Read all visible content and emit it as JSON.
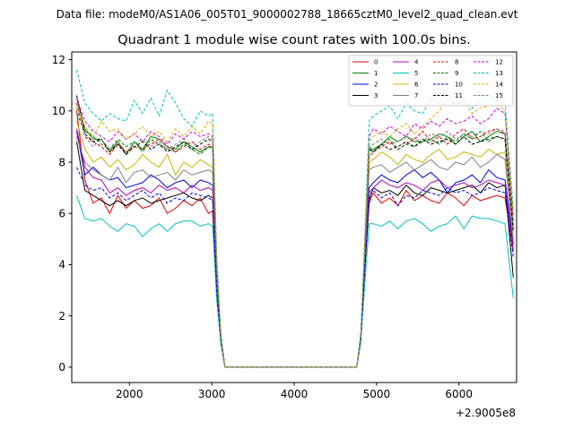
{
  "suptitle": "Data file: modeM0/AS1A06_005T01_9000002788_18665cztM0_level2_quad_clean.evt",
  "chart_data": {
    "type": "line",
    "title": "Quadrant 1 module wise count rates with 100.0s bins.",
    "xlabel": "",
    "ylabel": "",
    "x_offset_label": "+2.9005e8",
    "xlim": [
      1300,
      6700
    ],
    "ylim": [
      -0.6,
      12.3
    ],
    "x_ticks": [
      2000,
      3000,
      4000,
      5000,
      6000
    ],
    "y_ticks": [
      0,
      2,
      4,
      6,
      8,
      10,
      12
    ],
    "x_tick_labels": [
      "2000",
      "3000",
      "4000",
      "5000",
      "6000"
    ],
    "y_tick_labels": [
      "0",
      "2",
      "4",
      "6",
      "8",
      "10",
      "12"
    ],
    "grid": false,
    "legend_position": "top-right",
    "x": [
      1360,
      1460,
      1560,
      1660,
      1760,
      1860,
      1960,
      2060,
      2160,
      2260,
      2360,
      2460,
      2560,
      2660,
      2760,
      2860,
      2960,
      3010,
      3060,
      3110,
      3160,
      3260,
      3360,
      3460,
      3560,
      3660,
      3760,
      3860,
      3960,
      4060,
      4160,
      4260,
      4360,
      4460,
      4560,
      4660,
      4760,
      4810,
      4860,
      4910,
      4960,
      5060,
      5160,
      5260,
      5360,
      5460,
      5560,
      5660,
      5760,
      5860,
      5960,
      6060,
      6160,
      6260,
      6360,
      6460,
      6560,
      6660
    ],
    "series": [
      {
        "name": "0",
        "color": "#e00000",
        "dash": "solid",
        "values": [
          10.0,
          7.3,
          6.4,
          6.6,
          6.0,
          6.7,
          6.2,
          6.5,
          6.2,
          6.3,
          6.6,
          6.0,
          6.2,
          6.5,
          6.3,
          6.6,
          6.0,
          6.1,
          3.0,
          1.0,
          0,
          0,
          0,
          0,
          0,
          0,
          0,
          0,
          0,
          0,
          0,
          0,
          0,
          0,
          0,
          0,
          0,
          1.2,
          4.0,
          6.4,
          6.8,
          6.4,
          6.6,
          6.3,
          6.9,
          6.5,
          6.7,
          6.5,
          6.4,
          6.8,
          6.6,
          6.3,
          6.7,
          6.5,
          6.6,
          6.7,
          6.6,
          4.5
        ]
      },
      {
        "name": "1",
        "color": "#008000",
        "dash": "solid",
        "values": [
          10.5,
          9.3,
          8.9,
          8.9,
          8.4,
          8.8,
          8.3,
          8.8,
          8.5,
          9.0,
          8.9,
          8.6,
          8.5,
          8.8,
          8.6,
          8.4,
          8.6,
          8.6,
          3.8,
          1.2,
          0,
          0,
          0,
          0,
          0,
          0,
          0,
          0,
          0,
          0,
          0,
          0,
          0,
          0,
          0,
          0,
          0,
          1.3,
          4.8,
          8.5,
          8.5,
          8.7,
          9.0,
          8.8,
          9.0,
          8.8,
          8.8,
          8.9,
          9.1,
          9.0,
          8.7,
          9.0,
          9.2,
          8.8,
          9.0,
          9.2,
          9.1,
          5.5
        ]
      },
      {
        "name": "2",
        "color": "#0000e0",
        "dash": "solid",
        "values": [
          9.2,
          7.5,
          7.8,
          7.5,
          7.3,
          7.4,
          7.0,
          7.1,
          7.2,
          7.5,
          7.3,
          7.0,
          7.2,
          7.3,
          7.0,
          7.3,
          7.2,
          7.1,
          3.2,
          1.1,
          0,
          0,
          0,
          0,
          0,
          0,
          0,
          0,
          0,
          0,
          0,
          0,
          0,
          0,
          0,
          0,
          0,
          1.2,
          4.3,
          7.0,
          7.2,
          7.5,
          7.3,
          7.2,
          7.5,
          7.7,
          7.4,
          7.6,
          7.3,
          6.8,
          7.2,
          7.3,
          7.5,
          7.2,
          7.7,
          7.4,
          7.3,
          4.8
        ]
      },
      {
        "name": "3",
        "color": "#000000",
        "dash": "solid",
        "values": [
          8.8,
          6.9,
          6.7,
          6.5,
          6.3,
          6.5,
          6.3,
          6.5,
          6.6,
          6.4,
          6.5,
          6.6,
          6.7,
          6.8,
          6.6,
          6.5,
          6.7,
          6.6,
          3.0,
          1.0,
          0,
          0,
          0,
          0,
          0,
          0,
          0,
          0,
          0,
          0,
          0,
          0,
          0,
          0,
          0,
          0,
          0,
          1.1,
          4.0,
          6.5,
          7.0,
          6.8,
          6.9,
          6.7,
          7.1,
          6.8,
          6.7,
          7.0,
          6.9,
          6.8,
          6.9,
          7.0,
          7.1,
          6.8,
          7.2,
          7.0,
          7.1,
          3.5
        ]
      },
      {
        "name": "4",
        "color": "#b000b0",
        "dash": "solid",
        "values": [
          9.3,
          7.8,
          7.4,
          7.3,
          6.8,
          7.0,
          6.7,
          6.9,
          7.0,
          6.8,
          7.1,
          6.9,
          7.0,
          6.8,
          7.1,
          6.9,
          7.0,
          6.9,
          3.1,
          1.0,
          0,
          0,
          0,
          0,
          0,
          0,
          0,
          0,
          0,
          0,
          0,
          0,
          0,
          0,
          0,
          0,
          0,
          1.2,
          4.2,
          6.8,
          7.0,
          7.3,
          7.1,
          7.0,
          7.2,
          7.1,
          6.9,
          7.2,
          7.3,
          7.0,
          7.1,
          7.2,
          7.0,
          7.1,
          7.3,
          7.2,
          7.1,
          4.6
        ]
      },
      {
        "name": "5",
        "color": "#00bfbf",
        "dash": "solid",
        "values": [
          6.7,
          5.8,
          5.7,
          5.8,
          5.5,
          5.3,
          5.6,
          5.5,
          5.1,
          5.4,
          5.6,
          5.3,
          5.6,
          5.7,
          5.7,
          5.5,
          5.6,
          5.5,
          2.6,
          0.9,
          0,
          0,
          0,
          0,
          0,
          0,
          0,
          0,
          0,
          0,
          0,
          0,
          0,
          0,
          0,
          0,
          0,
          1.0,
          3.4,
          5.6,
          5.6,
          5.5,
          5.7,
          5.4,
          5.7,
          5.8,
          5.6,
          5.3,
          5.5,
          5.6,
          5.9,
          5.4,
          5.9,
          5.8,
          5.8,
          5.7,
          5.6,
          2.7
        ]
      },
      {
        "name": "6",
        "color": "#c8b400",
        "dash": "solid",
        "values": [
          9.6,
          8.5,
          8.0,
          8.2,
          7.8,
          8.1,
          7.7,
          7.9,
          8.3,
          8.0,
          7.8,
          8.3,
          7.5,
          8.0,
          7.8,
          8.1,
          7.9,
          7.8,
          3.5,
          1.1,
          0,
          0,
          0,
          0,
          0,
          0,
          0,
          0,
          0,
          0,
          0,
          0,
          0,
          0,
          0,
          0,
          0,
          1.3,
          4.6,
          8.0,
          8.1,
          8.4,
          8.2,
          7.9,
          8.3,
          8.1,
          8.0,
          8.3,
          8.5,
          8.1,
          8.2,
          8.4,
          8.3,
          8.2,
          8.5,
          8.3,
          8.4,
          5.0
        ]
      },
      {
        "name": "7",
        "color": "#808080",
        "dash": "solid",
        "values": [
          9.0,
          8.0,
          7.7,
          7.5,
          7.3,
          7.8,
          7.2,
          7.6,
          7.7,
          7.4,
          7.5,
          7.6,
          7.3,
          7.7,
          7.5,
          7.6,
          7.7,
          7.6,
          3.4,
          1.1,
          0,
          0,
          0,
          0,
          0,
          0,
          0,
          0,
          0,
          0,
          0,
          0,
          0,
          0,
          0,
          0,
          0,
          1.2,
          4.5,
          7.7,
          7.8,
          7.9,
          7.6,
          7.8,
          8.0,
          7.7,
          7.9,
          8.1,
          7.8,
          7.7,
          8.0,
          7.9,
          8.2,
          7.8,
          8.0,
          8.3,
          8.1,
          4.9
        ]
      },
      {
        "name": "8",
        "color": "#e00000",
        "dash": "dashed",
        "values": [
          10.3,
          9.0,
          8.8,
          8.6,
          8.3,
          8.7,
          8.4,
          8.6,
          8.5,
          8.7,
          8.9,
          8.6,
          8.4,
          8.6,
          8.8,
          8.5,
          8.7,
          8.6,
          3.9,
          1.2,
          0,
          0,
          0,
          0,
          0,
          0,
          0,
          0,
          0,
          0,
          0,
          0,
          0,
          0,
          0,
          0,
          0,
          1.3,
          4.9,
          8.2,
          8.4,
          8.6,
          8.8,
          8.5,
          8.7,
          8.9,
          9.2,
          8.8,
          9.0,
          8.7,
          9.1,
          9.3,
          8.9,
          9.0,
          9.2,
          9.3,
          9.1,
          5.6
        ]
      },
      {
        "name": "9",
        "color": "#008000",
        "dash": "dashed",
        "values": [
          9.9,
          9.2,
          9.0,
          8.7,
          8.5,
          8.9,
          8.6,
          8.8,
          8.4,
          8.9,
          8.7,
          8.5,
          8.4,
          8.7,
          8.5,
          8.3,
          8.6,
          8.5,
          3.8,
          1.2,
          0,
          0,
          0,
          0,
          0,
          0,
          0,
          0,
          0,
          0,
          0,
          0,
          0,
          0,
          0,
          0,
          0,
          1.3,
          4.8,
          8.6,
          8.4,
          8.7,
          8.9,
          8.5,
          8.7,
          8.6,
          8.8,
          8.9,
          8.7,
          9.0,
          8.8,
          9.1,
          8.9,
          9.2,
          8.8,
          9.0,
          8.9,
          5.4
        ]
      },
      {
        "name": "10",
        "color": "#0000e0",
        "dash": "dashed",
        "values": [
          7.8,
          7.1,
          6.9,
          7.0,
          6.6,
          6.8,
          6.5,
          6.7,
          6.9,
          6.6,
          6.8,
          6.4,
          6.6,
          6.5,
          6.8,
          6.7,
          6.6,
          6.5,
          3.0,
          1.0,
          0,
          0,
          0,
          0,
          0,
          0,
          0,
          0,
          0,
          0,
          0,
          0,
          0,
          0,
          0,
          0,
          0,
          1.1,
          4.0,
          6.7,
          6.9,
          6.6,
          6.8,
          6.3,
          6.7,
          6.6,
          6.9,
          6.8,
          6.7,
          7.0,
          6.8,
          6.9,
          6.7,
          6.8,
          7.0,
          6.9,
          6.8,
          4.3
        ]
      },
      {
        "name": "11",
        "color": "#000000",
        "dash": "dashed",
        "values": [
          10.6,
          9.1,
          8.8,
          8.9,
          8.4,
          8.7,
          8.3,
          8.6,
          8.8,
          8.5,
          8.7,
          8.4,
          8.6,
          8.8,
          8.5,
          8.7,
          8.9,
          8.8,
          3.9,
          1.2,
          0,
          0,
          0,
          0,
          0,
          0,
          0,
          0,
          0,
          0,
          0,
          0,
          0,
          0,
          0,
          0,
          0,
          1.3,
          4.9,
          8.5,
          8.4,
          8.7,
          8.5,
          8.6,
          8.8,
          8.6,
          8.9,
          8.7,
          8.8,
          8.9,
          8.7,
          9.0,
          8.7,
          8.8,
          8.9,
          9.0,
          8.9,
          5.3
        ]
      },
      {
        "name": "12",
        "color": "#d000d0",
        "dash": "dashed",
        "values": [
          10.5,
          9.6,
          9.2,
          9.0,
          8.8,
          9.2,
          8.9,
          9.1,
          8.8,
          9.2,
          9.0,
          8.7,
          9.1,
          8.9,
          9.2,
          9.0,
          9.1,
          9.0,
          4.0,
          1.2,
          0,
          0,
          0,
          0,
          0,
          0,
          0,
          0,
          0,
          0,
          0,
          0,
          0,
          0,
          0,
          0,
          0,
          1.3,
          5.0,
          9.0,
          9.3,
          9.1,
          9.4,
          9.2,
          9.0,
          9.5,
          9.3,
          9.6,
          9.4,
          9.7,
          9.5,
          9.6,
          9.8,
          9.5,
          9.7,
          10.1,
          9.9,
          5.8
        ]
      },
      {
        "name": "13",
        "color": "#00bfbf",
        "dash": "dashed",
        "values": [
          11.6,
          10.3,
          9.9,
          9.6,
          9.9,
          9.7,
          9.6,
          10.4,
          9.9,
          10.5,
          9.8,
          10.8,
          10.3,
          9.7,
          9.4,
          10.0,
          9.8,
          9.9,
          4.3,
          1.3,
          0,
          0,
          0,
          0,
          0,
          0,
          0,
          0,
          0,
          0,
          0,
          0,
          0,
          0,
          0,
          0,
          0,
          1.4,
          5.3,
          9.6,
          9.8,
          10.0,
          10.2,
          9.7,
          10.3,
          10.0,
          9.9,
          10.5,
          10.3,
          10.8,
          10.2,
          10.5,
          10.1,
          10.4,
          10.6,
          10.4,
          10.3,
          6.2
        ]
      },
      {
        "name": "14",
        "color": "#c8b400",
        "dash": "dashed",
        "values": [
          10.2,
          9.4,
          9.0,
          9.6,
          9.2,
          9.3,
          8.9,
          9.1,
          9.4,
          9.0,
          9.2,
          8.8,
          9.3,
          9.0,
          9.4,
          9.1,
          9.6,
          9.5,
          4.1,
          1.2,
          0,
          0,
          0,
          0,
          0,
          0,
          0,
          0,
          0,
          0,
          0,
          0,
          0,
          0,
          0,
          0,
          0,
          1.3,
          5.1,
          8.8,
          9.0,
          9.2,
          9.0,
          9.3,
          9.5,
          9.1,
          9.4,
          9.7,
          10.0,
          10.5,
          10.2,
          10.4,
          9.9,
          10.1,
          10.2,
          10.3,
          10.0,
          6.0
        ]
      },
      {
        "name": "15",
        "color": "#808080",
        "dash": "dashed",
        "values": [
          10.1,
          9.0,
          8.6,
          8.9,
          8.5,
          8.8,
          8.4,
          8.7,
          8.9,
          8.6,
          8.8,
          8.5,
          8.7,
          8.9,
          8.6,
          8.8,
          9.0,
          8.9,
          3.9,
          1.2,
          0,
          0,
          0,
          0,
          0,
          0,
          0,
          0,
          0,
          0,
          0,
          0,
          0,
          0,
          0,
          0,
          0,
          1.3,
          4.9,
          8.6,
          8.7,
          8.9,
          8.7,
          8.8,
          9.0,
          8.9,
          8.8,
          9.1,
          9.0,
          9.2,
          8.9,
          9.1,
          9.0,
          9.2,
          9.1,
          9.3,
          9.2,
          5.5
        ]
      }
    ]
  }
}
